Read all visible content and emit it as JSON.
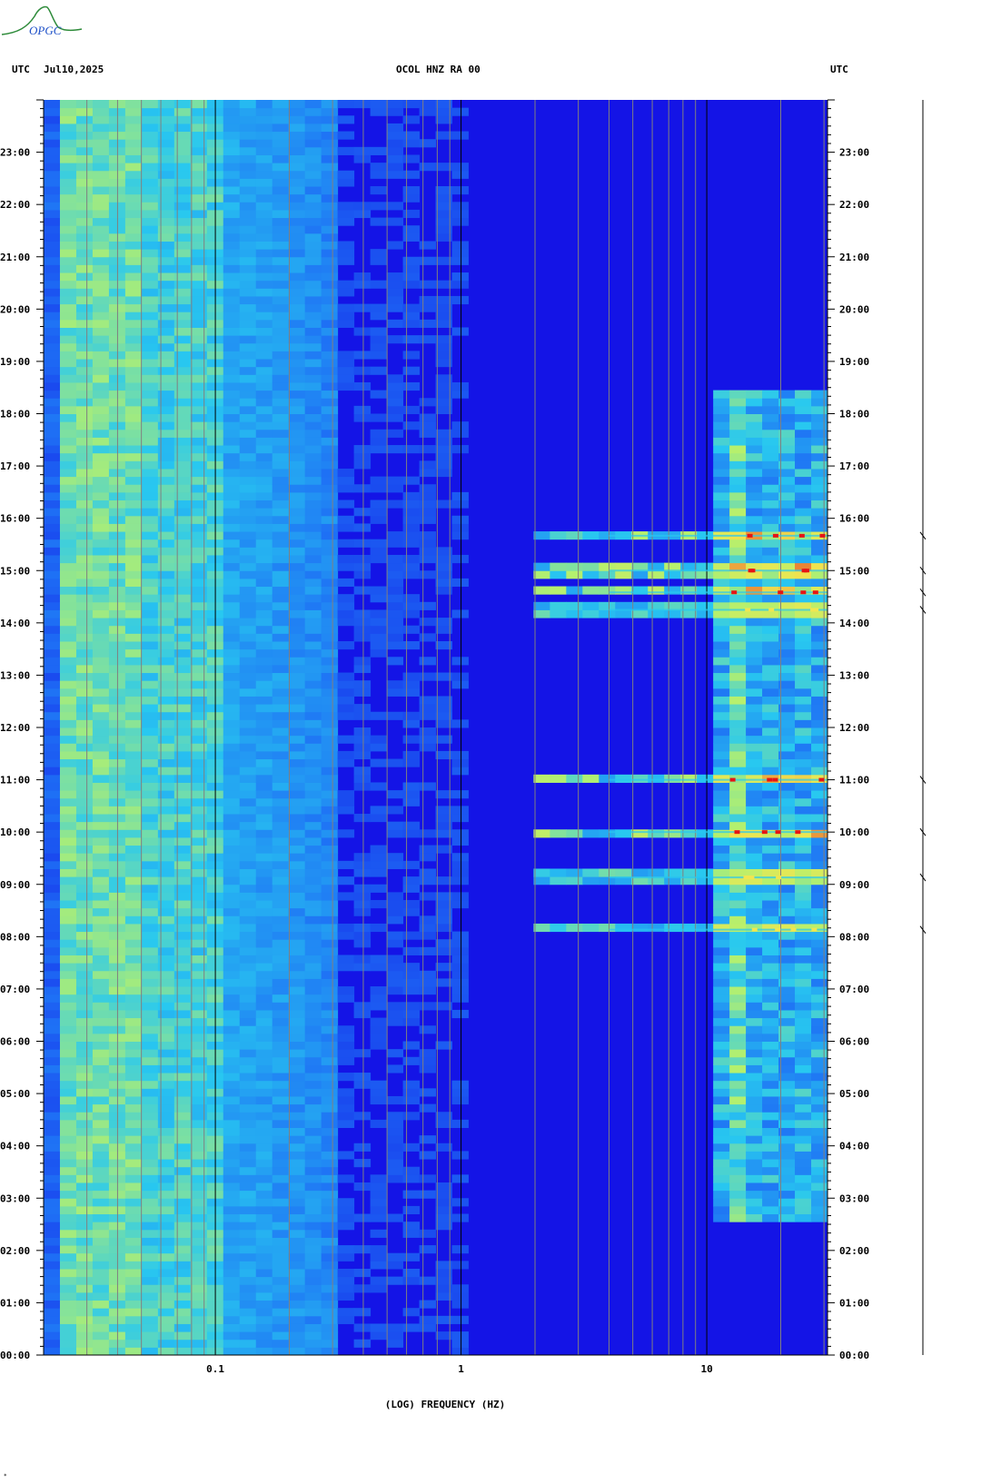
{
  "header": {
    "left_tz": "UTC",
    "date": "Jul10,2025",
    "station": "OCOL HNZ RA 00",
    "right_tz": "UTC"
  },
  "logo": {
    "text": "OPGC",
    "color": "#2e8b3a",
    "text_color": "#1e50c8"
  },
  "chart_data": {
    "type": "heatmap",
    "title": "OCOL HNZ RA 00",
    "xlabel": "(LOG) FREQUENCY (HZ)",
    "ylabel": "",
    "x_scale": "log",
    "xlim": [
      0.02,
      31
    ],
    "x_ticks": [
      {
        "value": 0.1,
        "label": "0.1"
      },
      {
        "value": 1,
        "label": "1"
      },
      {
        "value": 10,
        "label": "10"
      }
    ],
    "ylim_hours": [
      0,
      24
    ],
    "y_tick_labels": [
      "00:00",
      "01:00",
      "02:00",
      "03:00",
      "04:00",
      "05:00",
      "06:00",
      "07:00",
      "08:00",
      "09:00",
      "10:00",
      "11:00",
      "12:00",
      "13:00",
      "14:00",
      "15:00",
      "16:00",
      "17:00",
      "18:00",
      "19:00",
      "20:00",
      "21:00",
      "22:00",
      "23:00"
    ],
    "colormap": [
      "#1414e6",
      "#1e6ef5",
      "#28c8f0",
      "#b4f06e",
      "#f0e650",
      "#e61414"
    ],
    "background_color": "#1414e6",
    "events_utc": [
      {
        "time": "15:40",
        "level": "strong"
      },
      {
        "time": "15:00",
        "level": "strong"
      },
      {
        "time": "14:35",
        "level": "strong"
      },
      {
        "time": "14:15",
        "level": "medium"
      },
      {
        "time": "11:00",
        "level": "strong"
      },
      {
        "time": "10:00",
        "level": "strong"
      },
      {
        "time": "09:08",
        "level": "medium"
      },
      {
        "time": "08:08",
        "level": "medium"
      }
    ],
    "noisy_high_freq_span_utc": [
      "02:30",
      "18:30"
    ]
  }
}
